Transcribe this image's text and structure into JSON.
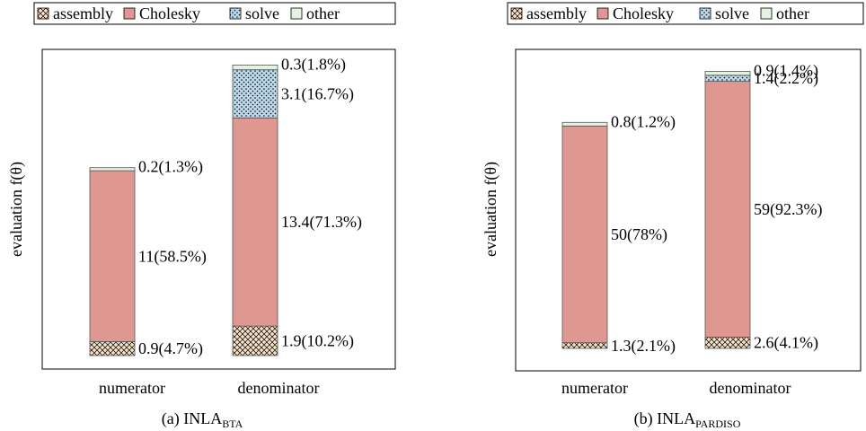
{
  "legend_items": [
    {
      "label": "assembly",
      "color": "#f5e1c8",
      "pattern": "crosshatch"
    },
    {
      "label": "Cholesky",
      "color": "#df9791",
      "pattern": "solid"
    },
    {
      "label": "solve",
      "color": "#bcd8ea",
      "pattern": "dots"
    },
    {
      "label": "other",
      "color": "#e3f3df",
      "pattern": "solid"
    }
  ],
  "chart_data": [
    {
      "type": "bar",
      "stacked": true,
      "caption": "(a) INLA",
      "caption_sub": "BTA",
      "ylabel": "evaluation f(θ)",
      "categories": [
        "numerator",
        "denominator"
      ],
      "series": [
        {
          "name": "assembly",
          "values": [
            0.9,
            1.9
          ]
        },
        {
          "name": "Cholesky",
          "values": [
            11,
            13.4
          ]
        },
        {
          "name": "solve",
          "values": [
            0,
            3.1
          ]
        },
        {
          "name": "other",
          "values": [
            0.2,
            0.3
          ]
        }
      ],
      "segment_labels": [
        [
          "0.9(4.7%)",
          "11(58.5%)",
          "",
          "0.2(1.3%)"
        ],
        [
          "1.9(10.2%)",
          "13.4(71.3%)",
          "3.1(16.7%)",
          "0.3(1.8%)"
        ]
      ],
      "ylim": [
        0,
        20
      ],
      "grid": false,
      "legend": "top"
    },
    {
      "type": "bar",
      "stacked": true,
      "caption": "(b) INLA",
      "caption_sub": "PARDISO",
      "ylabel": "evaluation f(θ)",
      "categories": [
        "numerator",
        "denominator"
      ],
      "series": [
        {
          "name": "assembly",
          "values": [
            1.3,
            2.6
          ]
        },
        {
          "name": "Cholesky",
          "values": [
            50,
            59
          ]
        },
        {
          "name": "solve",
          "values": [
            0,
            1.4
          ]
        },
        {
          "name": "other",
          "values": [
            0.8,
            0.9
          ]
        }
      ],
      "segment_labels": [
        [
          "1.3(2.1%)",
          "50(78%)",
          "",
          "0.8(1.2%)"
        ],
        [
          "2.6(4.1%)",
          "59(92.3%)",
          "1.4(2.2%)",
          "0.9(1.4%)"
        ]
      ],
      "ylim": [
        0,
        70
      ],
      "grid": false,
      "legend": "top"
    }
  ]
}
